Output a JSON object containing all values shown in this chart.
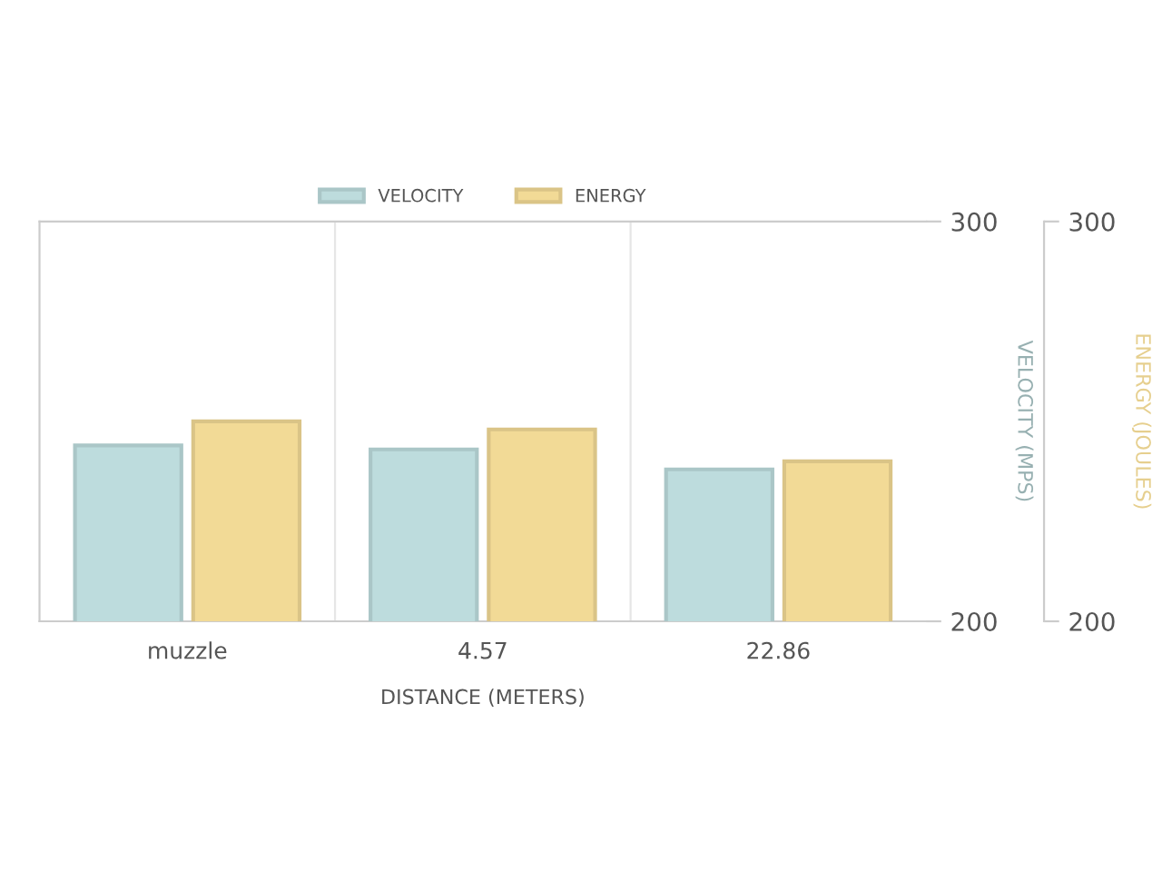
{
  "chart_data": {
    "type": "bar",
    "categories": [
      "muzzle",
      "4.57",
      "22.86"
    ],
    "xlabel": "DISTANCE (METERS)",
    "ylabel": "VELOCITY (MPS)",
    "y2label": "ENERGY (JOULES)",
    "series": [
      {
        "name": "VELOCITY",
        "color": "#bddcdd",
        "values": [
          244,
          243,
          238
        ]
      },
      {
        "name": "ENERGY",
        "color": "#f2da96",
        "values": [
          250,
          248,
          240
        ],
        "axis": "y2"
      }
    ],
    "ylim": [
      200,
      300
    ],
    "yticks": [
      200,
      300
    ],
    "y2lim": [
      200,
      300
    ],
    "y2ticks": [
      200,
      300
    ],
    "grid": true,
    "legend": "top"
  }
}
